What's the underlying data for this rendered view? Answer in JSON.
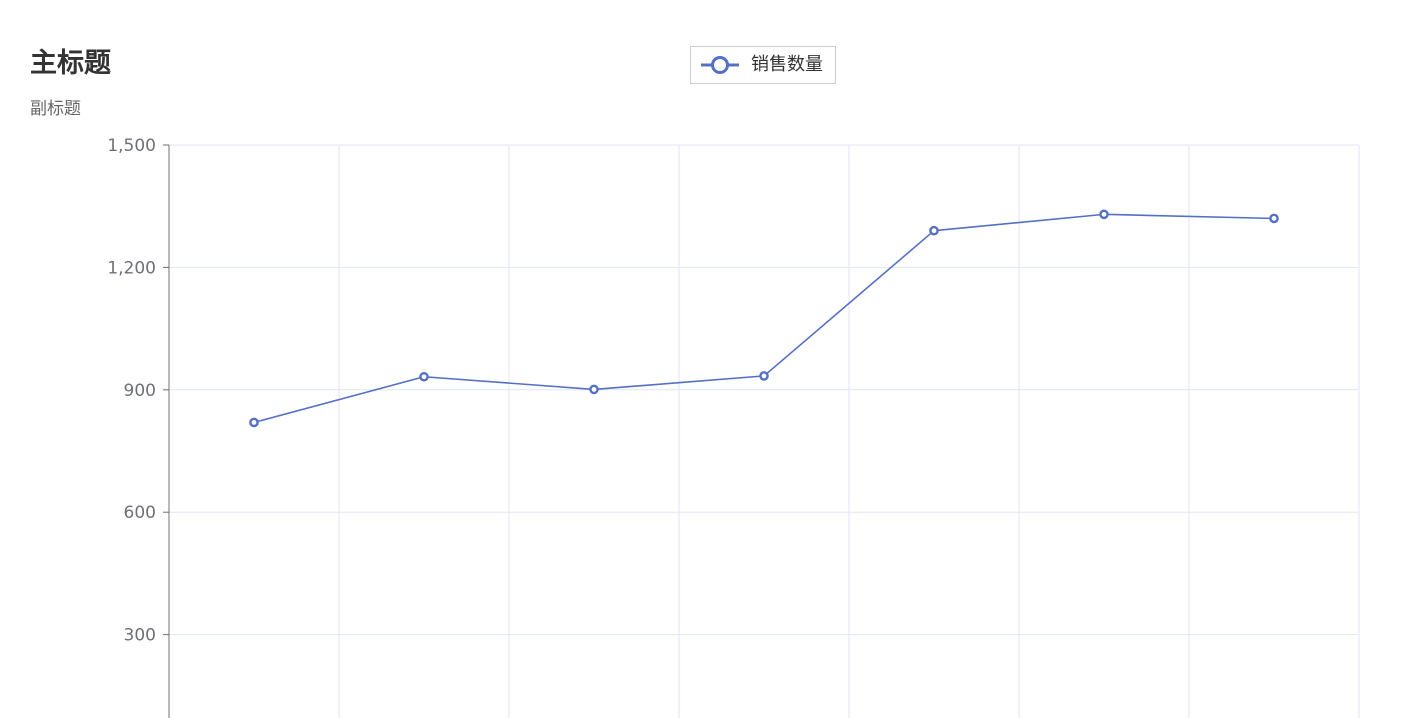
{
  "chart_data": {
    "type": "line",
    "title": "主标题",
    "subtitle": "副标题",
    "legend": {
      "position": "top-center"
    },
    "grid": true,
    "ylim": [
      0,
      1500
    ],
    "y_ticks": [
      "300",
      "600",
      "900",
      "1,200",
      "1,500"
    ],
    "categories_count": 7,
    "series": [
      {
        "name": "销售数量",
        "color": "#5470c6",
        "values": [
          820,
          932,
          901,
          934,
          1290,
          1330,
          1320
        ]
      }
    ]
  }
}
